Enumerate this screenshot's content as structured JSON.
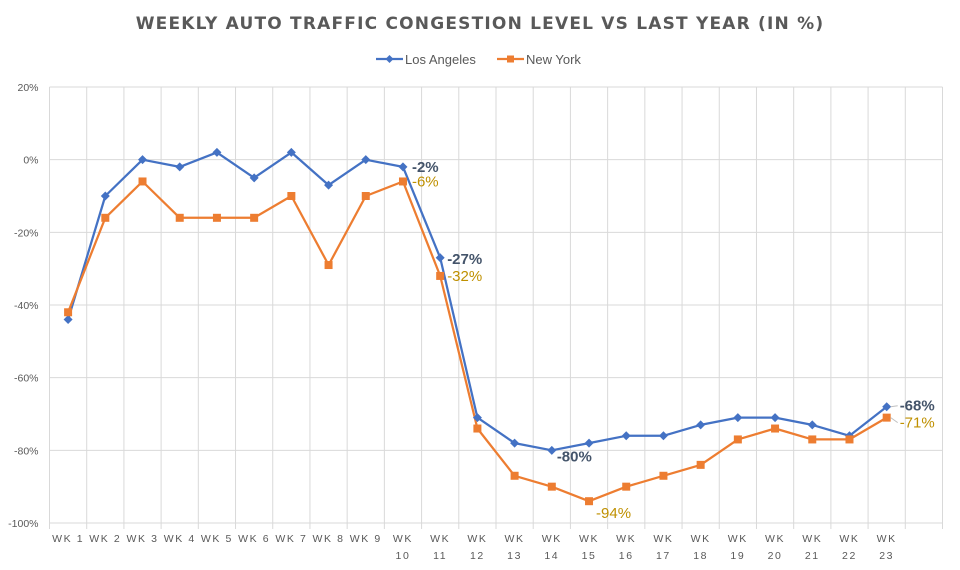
{
  "chart_data": {
    "type": "line",
    "title": "WEEKLY AUTO TRAFFIC CONGESTION LEVEL VS LAST YEAR (IN %)",
    "xlabel": "",
    "ylabel": "",
    "categories": [
      [
        "WK 1"
      ],
      [
        "WK 2"
      ],
      [
        "WK 3"
      ],
      [
        "WK 4"
      ],
      [
        "WK 5"
      ],
      [
        "WK 6"
      ],
      [
        "WK 7"
      ],
      [
        "WK 8"
      ],
      [
        "WK 9"
      ],
      [
        "WK",
        "10"
      ],
      [
        "WK",
        "11"
      ],
      [
        "WK",
        "12"
      ],
      [
        "WK",
        "13"
      ],
      [
        "WK",
        "14"
      ],
      [
        "WK",
        "15"
      ],
      [
        "WK",
        "16"
      ],
      [
        "WK",
        "17"
      ],
      [
        "WK",
        "18"
      ],
      [
        "WK",
        "19"
      ],
      [
        "WK",
        "20"
      ],
      [
        "WK",
        "21"
      ],
      [
        "WK",
        "22"
      ],
      [
        "WK",
        "23"
      ],
      [
        ""
      ]
    ],
    "ylim": [
      -100,
      20
    ],
    "yticks": [
      20,
      0,
      -20,
      -40,
      -60,
      -80,
      -100
    ],
    "ytick_labels": [
      "20%",
      "0%",
      "-20%",
      "-40%",
      "-60%",
      "-80%",
      "-100%"
    ],
    "grid": true,
    "legend_position": "top-center",
    "series": [
      {
        "name": "Los Angeles",
        "color": "#4472C4",
        "marker": "diamond",
        "label_color": "#44546A",
        "values": [
          -44,
          -10,
          0,
          -2,
          2,
          -5,
          2,
          -7,
          0,
          -2,
          -27,
          -71,
          -78,
          -80,
          -78,
          -76,
          -76,
          -73,
          -71,
          -71,
          -73,
          -76,
          -68
        ]
      },
      {
        "name": "New York",
        "color": "#ED7D31",
        "marker": "square",
        "label_color": "#BF9000",
        "values": [
          -42,
          -16,
          -6,
          -16,
          -16,
          -16,
          -10,
          -29,
          -10,
          -6,
          -32,
          -74,
          -87,
          -90,
          -94,
          -90,
          -87,
          -84,
          -77,
          -74,
          -77,
          -77,
          -71
        ]
      }
    ],
    "annotations": [
      {
        "series": "Los Angeles",
        "index": 9,
        "text": "-2%"
      },
      {
        "series": "New York",
        "index": 9,
        "text": "-6%"
      },
      {
        "series": "Los Angeles",
        "index": 10,
        "text": "-27%"
      },
      {
        "series": "New York",
        "index": 10,
        "text": "-32%"
      },
      {
        "series": "Los Angeles",
        "index": 13,
        "text": "-80%"
      },
      {
        "series": "New York",
        "index": 14,
        "text": "-94%"
      },
      {
        "series": "Los Angeles",
        "index": 22,
        "text": "-68%"
      },
      {
        "series": "New York",
        "index": 22,
        "text": "-71%"
      }
    ]
  }
}
